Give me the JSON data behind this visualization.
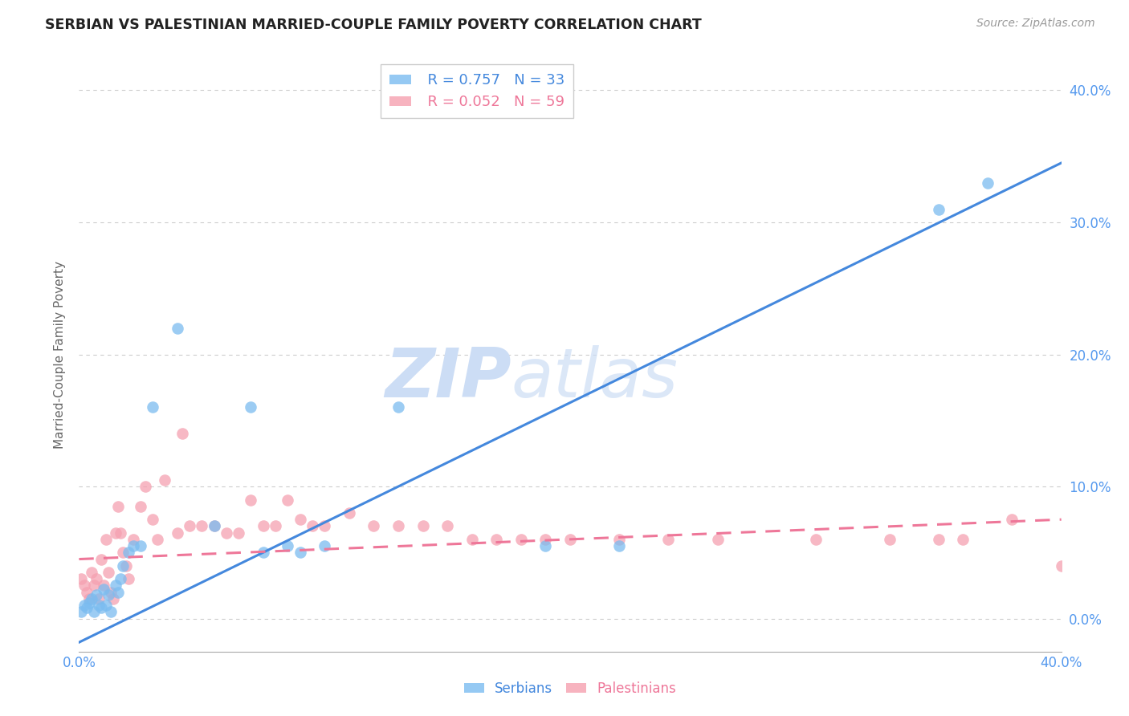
{
  "title": "SERBIAN VS PALESTINIAN MARRIED-COUPLE FAMILY POVERTY CORRELATION CHART",
  "source": "Source: ZipAtlas.com",
  "ylabel": "Married-Couple Family Poverty",
  "xlim": [
    0.0,
    0.4
  ],
  "ylim": [
    -0.025,
    0.425
  ],
  "ytick_labels": [
    "0.0%",
    "10.0%",
    "20.0%",
    "30.0%",
    "40.0%"
  ],
  "ytick_values": [
    0.0,
    0.1,
    0.2,
    0.3,
    0.4
  ],
  "xtick_values": [
    0.0,
    0.1,
    0.2,
    0.3,
    0.4
  ],
  "xtick_labels": [
    "0.0%",
    "",
    "",
    "",
    "40.0%"
  ],
  "serbian_R": 0.757,
  "serbian_N": 33,
  "palestinian_R": 0.052,
  "palestinian_N": 59,
  "serbian_color": "#7bbcf0",
  "palestinian_color": "#f5a0b0",
  "serbian_line_color": "#4488dd",
  "palestinian_line_color": "#ee7799",
  "watermark_color": "#ccddf5",
  "background_color": "#ffffff",
  "grid_color": "#cccccc",
  "axis_color": "#aaaaaa",
  "tick_color": "#5599ee",
  "serbian_x": [
    0.001,
    0.002,
    0.003,
    0.004,
    0.005,
    0.006,
    0.007,
    0.008,
    0.009,
    0.01,
    0.011,
    0.012,
    0.013,
    0.015,
    0.016,
    0.017,
    0.018,
    0.02,
    0.022,
    0.025,
    0.03,
    0.04,
    0.055,
    0.07,
    0.075,
    0.085,
    0.09,
    0.1,
    0.13,
    0.19,
    0.22,
    0.35,
    0.37
  ],
  "serbian_y": [
    0.005,
    0.01,
    0.008,
    0.012,
    0.015,
    0.005,
    0.018,
    0.01,
    0.008,
    0.022,
    0.01,
    0.018,
    0.005,
    0.025,
    0.02,
    0.03,
    0.04,
    0.05,
    0.055,
    0.055,
    0.16,
    0.22,
    0.07,
    0.16,
    0.05,
    0.055,
    0.05,
    0.055,
    0.16,
    0.055,
    0.055,
    0.31,
    0.33
  ],
  "palestinian_x": [
    0.001,
    0.002,
    0.003,
    0.004,
    0.005,
    0.006,
    0.007,
    0.008,
    0.009,
    0.01,
    0.011,
    0.012,
    0.013,
    0.014,
    0.015,
    0.016,
    0.017,
    0.018,
    0.019,
    0.02,
    0.022,
    0.025,
    0.027,
    0.03,
    0.032,
    0.035,
    0.04,
    0.042,
    0.045,
    0.05,
    0.055,
    0.06,
    0.065,
    0.07,
    0.075,
    0.08,
    0.085,
    0.09,
    0.095,
    0.1,
    0.11,
    0.12,
    0.13,
    0.14,
    0.15,
    0.16,
    0.17,
    0.18,
    0.19,
    0.2,
    0.22,
    0.24,
    0.26,
    0.3,
    0.33,
    0.35,
    0.36,
    0.38,
    0.4
  ],
  "palestinian_y": [
    0.03,
    0.025,
    0.02,
    0.015,
    0.035,
    0.025,
    0.03,
    0.015,
    0.045,
    0.025,
    0.06,
    0.035,
    0.02,
    0.015,
    0.065,
    0.085,
    0.065,
    0.05,
    0.04,
    0.03,
    0.06,
    0.085,
    0.1,
    0.075,
    0.06,
    0.105,
    0.065,
    0.14,
    0.07,
    0.07,
    0.07,
    0.065,
    0.065,
    0.09,
    0.07,
    0.07,
    0.09,
    0.075,
    0.07,
    0.07,
    0.08,
    0.07,
    0.07,
    0.07,
    0.07,
    0.06,
    0.06,
    0.06,
    0.06,
    0.06,
    0.06,
    0.06,
    0.06,
    0.06,
    0.06,
    0.06,
    0.06,
    0.075,
    0.04
  ],
  "serbian_line_x": [
    0.0,
    0.4
  ],
  "serbian_line_y": [
    -0.018,
    0.345
  ],
  "palestinian_line_x": [
    0.0,
    0.4
  ],
  "palestinian_line_y": [
    0.045,
    0.075
  ]
}
